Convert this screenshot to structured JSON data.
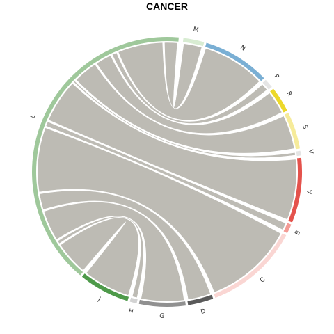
{
  "title": "CANCER",
  "chord_color": "#bdbbb4",
  "segments": [
    {
      "label": "M",
      "start": 7,
      "end": 16,
      "color": "#d8ecd2"
    },
    {
      "label": "N",
      "start": 17,
      "end": 46,
      "color": "#7aafd4"
    },
    {
      "label": "P",
      "start": 47,
      "end": 51,
      "color": "#e5e5e5"
    },
    {
      "label": "R",
      "start": 52,
      "end": 63,
      "color": "#ecd82a"
    },
    {
      "label": "S",
      "start": 64,
      "end": 80,
      "color": "#f6eb9a"
    },
    {
      "label": "V",
      "start": 81,
      "end": 83,
      "color": "#e4e4e4"
    },
    {
      "label": "A",
      "start": 84,
      "end": 112,
      "color": "#e4524c"
    },
    {
      "label": "B",
      "start": 113,
      "end": 117,
      "color": "#f49b95"
    },
    {
      "label": "C",
      "start": 118,
      "end": 159,
      "color": "#fad6d3"
    },
    {
      "label": "D",
      "start": 160,
      "end": 171,
      "color": "#5a5a5a"
    },
    {
      "label": "G",
      "start": 172,
      "end": 192,
      "color": "#909090"
    },
    {
      "label": "H",
      "start": 193,
      "end": 196,
      "color": "#d3d3d3"
    },
    {
      "label": "J",
      "start": 197,
      "end": 219,
      "color": "#4e9a4a"
    },
    {
      "label": "L",
      "start": 220,
      "end": 365,
      "color": "#9fc89b"
    }
  ]
}
